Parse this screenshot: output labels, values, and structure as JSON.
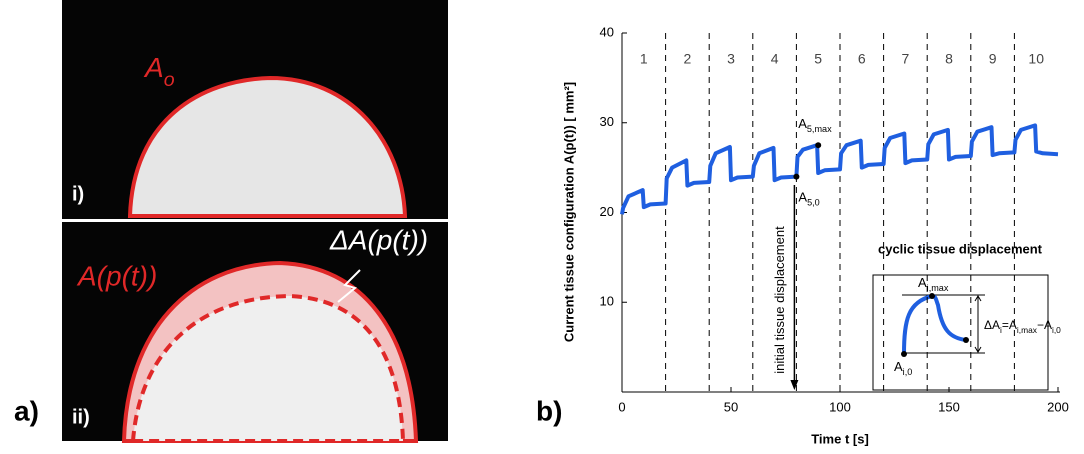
{
  "panel_a": {
    "tag": "a)",
    "top": {
      "label": [
        {
          "t": "A"
        },
        {
          "sub": "o"
        }
      ],
      "roman": "i)"
    },
    "bottom": {
      "label": "A(p(t))",
      "delta": "ΔA(p(t))",
      "roman": "ii)"
    }
  },
  "panel_b_tag": "b)",
  "chart_data": {
    "type": "line",
    "xlabel": "Time t [s]",
    "ylabel": "Current tissue configuration A(p(t)) [ mm²]",
    "xlim": [
      0,
      200
    ],
    "xticks": [
      0,
      50,
      100,
      150,
      200
    ],
    "ylim": [
      0,
      40
    ],
    "yticks": [
      10,
      20,
      30,
      40
    ],
    "color": "#1f5fe0",
    "cycle_boundaries": [
      20,
      40,
      60,
      80,
      100,
      120,
      140,
      160,
      180
    ],
    "cycle_labels": [
      "1",
      "2",
      "3",
      "4",
      "5",
      "6",
      "7",
      "8",
      "9",
      "10"
    ],
    "x": [
      0,
      0.5,
      3,
      9.5,
      10,
      13,
      20,
      20.5,
      23,
      29.5,
      30,
      33,
      40,
      40.5,
      43,
      49.5,
      50,
      53,
      60,
      60.5,
      63,
      69.5,
      70,
      73,
      80,
      80.5,
      83,
      89.5,
      90,
      93,
      100,
      100.5,
      103,
      109.5,
      110,
      113,
      120,
      120.5,
      123,
      129.5,
      130,
      133,
      140,
      140.5,
      143,
      149.5,
      150,
      153,
      160,
      160.5,
      163,
      169.5,
      170,
      173,
      180,
      180.5,
      183,
      189.5,
      190,
      193,
      200
    ],
    "values": [
      19.8,
      20.5,
      21.8,
      22.5,
      20.6,
      20.9,
      21.0,
      23.8,
      25.0,
      25.8,
      23.0,
      23.3,
      23.4,
      25.2,
      26.6,
      27.3,
      23.6,
      23.9,
      24.0,
      25.2,
      26.6,
      27.2,
      23.6,
      23.9,
      24.0,
      26.2,
      27.0,
      27.5,
      24.4,
      24.7,
      24.8,
      26.6,
      27.5,
      28.0,
      25.0,
      25.3,
      25.4,
      27.2,
      28.3,
      28.8,
      25.5,
      25.8,
      25.9,
      27.6,
      28.7,
      29.2,
      25.9,
      26.2,
      26.3,
      27.9,
      29.0,
      29.5,
      26.4,
      26.6,
      26.7,
      28.1,
      29.2,
      29.7,
      26.8,
      26.6,
      26.5
    ],
    "annotations": [
      {
        "parts": [
          {
            "t": "A"
          },
          {
            "sub": "5,max"
          }
        ],
        "x": 90,
        "y": 27.5
      },
      {
        "parts": [
          {
            "t": "A"
          },
          {
            "sub": "5,0"
          }
        ],
        "x": 80,
        "y": 24.0
      }
    ],
    "arrow_label": "initial tissue displacement",
    "inset": {
      "title": "cyclic tissue displacement",
      "max_label": [
        {
          "t": "A"
        },
        {
          "sub": "i,max"
        }
      ],
      "min_label": [
        {
          "t": "A"
        },
        {
          "sub": "i,0"
        }
      ],
      "formula": [
        {
          "t": "ΔA"
        },
        {
          "sub": "i"
        },
        {
          "t": "=A"
        },
        {
          "sub": "i,max"
        },
        {
          "t": "−A"
        },
        {
          "sub": "i,0"
        }
      ]
    }
  }
}
